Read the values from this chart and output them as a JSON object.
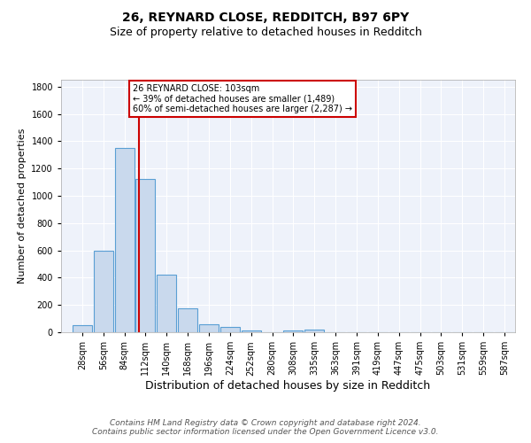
{
  "title1": "26, REYNARD CLOSE, REDDITCH, B97 6PY",
  "title2": "Size of property relative to detached houses in Redditch",
  "xlabel": "Distribution of detached houses by size in Redditch",
  "ylabel": "Number of detached properties",
  "footer1": "Contains HM Land Registry data © Crown copyright and database right 2024.",
  "footer2": "Contains public sector information licensed under the Open Government Licence v3.0.",
  "bin_labels": [
    "28sqm",
    "56sqm",
    "84sqm",
    "112sqm",
    "140sqm",
    "168sqm",
    "196sqm",
    "224sqm",
    "252sqm",
    "280sqm",
    "308sqm",
    "335sqm",
    "363sqm",
    "391sqm",
    "419sqm",
    "447sqm",
    "475sqm",
    "503sqm",
    "531sqm",
    "559sqm",
    "587sqm"
  ],
  "bar_values": [
    55,
    600,
    1350,
    1120,
    425,
    175,
    60,
    38,
    12,
    0,
    12,
    20,
    0,
    0,
    0,
    0,
    0,
    0,
    0,
    0,
    0
  ],
  "bar_color": "#c9d9ed",
  "bar_edgecolor": "#5a9fd4",
  "bar_linewidth": 0.8,
  "vline_x_sqm": 103,
  "vline_color": "#cc0000",
  "annotation_text": "26 REYNARD CLOSE: 103sqm\n← 39% of detached houses are smaller (1,489)\n60% of semi-detached houses are larger (2,287) →",
  "annotation_box_edgecolor": "#cc0000",
  "ylim": [
    0,
    1850
  ],
  "yticks": [
    0,
    200,
    400,
    600,
    800,
    1000,
    1200,
    1400,
    1600,
    1800
  ],
  "background_color": "#eef2fa",
  "grid_color": "#ffffff",
  "title1_fontsize": 10,
  "title2_fontsize": 9,
  "xlabel_fontsize": 9,
  "ylabel_fontsize": 8,
  "tick_fontsize": 7,
  "footer_fontsize": 6.5,
  "annotation_fontsize": 7
}
